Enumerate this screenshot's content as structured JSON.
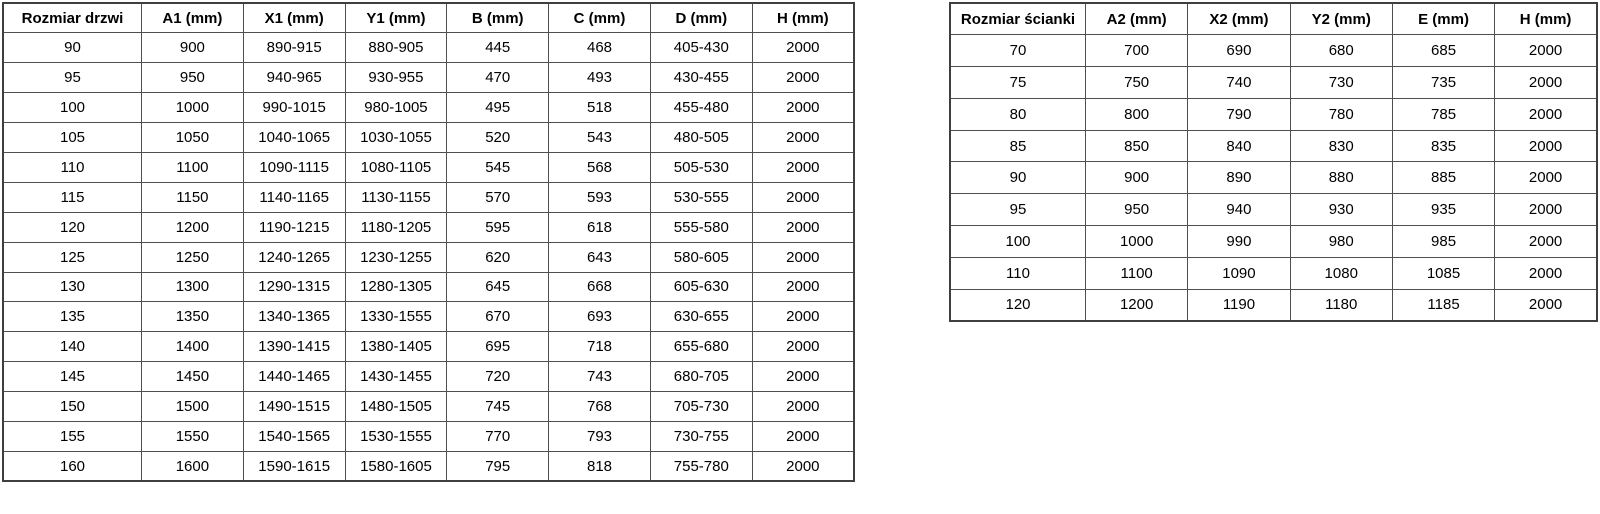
{
  "door_table": {
    "headers": [
      "Rozmiar drzwi",
      "A1 (mm)",
      "X1 (mm)",
      "Y1 (mm)",
      "B (mm)",
      "C (mm)",
      "D (mm)",
      "H (mm)"
    ],
    "rows": [
      [
        "90",
        "900",
        "890-915",
        "880-905",
        "445",
        "468",
        "405-430",
        "2000"
      ],
      [
        "95",
        "950",
        "940-965",
        "930-955",
        "470",
        "493",
        "430-455",
        "2000"
      ],
      [
        "100",
        "1000",
        "990-1015",
        "980-1005",
        "495",
        "518",
        "455-480",
        "2000"
      ],
      [
        "105",
        "1050",
        "1040-1065",
        "1030-1055",
        "520",
        "543",
        "480-505",
        "2000"
      ],
      [
        "110",
        "1100",
        "1090-1115",
        "1080-1105",
        "545",
        "568",
        "505-530",
        "2000"
      ],
      [
        "115",
        "1150",
        "1140-1165",
        "1130-1155",
        "570",
        "593",
        "530-555",
        "2000"
      ],
      [
        "120",
        "1200",
        "1190-1215",
        "1180-1205",
        "595",
        "618",
        "555-580",
        "2000"
      ],
      [
        "125",
        "1250",
        "1240-1265",
        "1230-1255",
        "620",
        "643",
        "580-605",
        "2000"
      ],
      [
        "130",
        "1300",
        "1290-1315",
        "1280-1305",
        "645",
        "668",
        "605-630",
        "2000"
      ],
      [
        "135",
        "1350",
        "1340-1365",
        "1330-1555",
        "670",
        "693",
        "630-655",
        "2000"
      ],
      [
        "140",
        "1400",
        "1390-1415",
        "1380-1405",
        "695",
        "718",
        "655-680",
        "2000"
      ],
      [
        "145",
        "1450",
        "1440-1465",
        "1430-1455",
        "720",
        "743",
        "680-705",
        "2000"
      ],
      [
        "150",
        "1500",
        "1490-1515",
        "1480-1505",
        "745",
        "768",
        "705-730",
        "2000"
      ],
      [
        "155",
        "1550",
        "1540-1565",
        "1530-1555",
        "770",
        "793",
        "730-755",
        "2000"
      ],
      [
        "160",
        "1600",
        "1590-1615",
        "1580-1605",
        "795",
        "818",
        "755-780",
        "2000"
      ]
    ]
  },
  "wall_table": {
    "headers": [
      "Rozmiar ścianki",
      "A2 (mm)",
      "X2 (mm)",
      "Y2 (mm)",
      "E (mm)",
      "H (mm)"
    ],
    "rows": [
      [
        "70",
        "700",
        "690",
        "680",
        "685",
        "2000"
      ],
      [
        "75",
        "750",
        "740",
        "730",
        "735",
        "2000"
      ],
      [
        "80",
        "800",
        "790",
        "780",
        "785",
        "2000"
      ],
      [
        "85",
        "850",
        "840",
        "830",
        "835",
        "2000"
      ],
      [
        "90",
        "900",
        "890",
        "880",
        "885",
        "2000"
      ],
      [
        "95",
        "950",
        "940",
        "930",
        "935",
        "2000"
      ],
      [
        "100",
        "1000",
        "990",
        "980",
        "985",
        "2000"
      ],
      [
        "110",
        "1100",
        "1090",
        "1080",
        "1085",
        "2000"
      ],
      [
        "120",
        "1200",
        "1190",
        "1180",
        "1185",
        "2000"
      ]
    ]
  },
  "colors": {
    "text": "#000000",
    "border": "#4f4f4f",
    "background": "#ffffff"
  }
}
